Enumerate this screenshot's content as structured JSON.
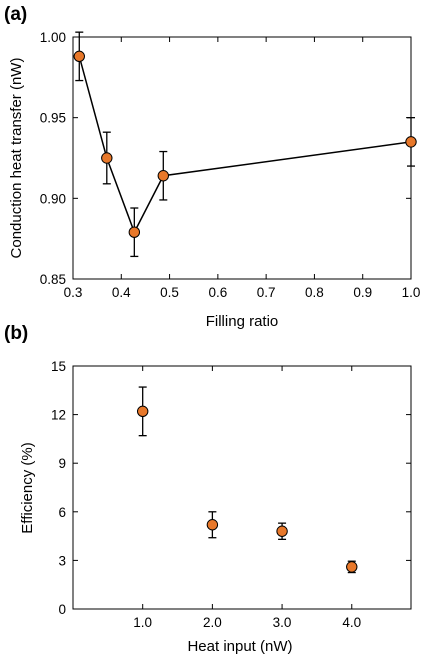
{
  "chart_data": [
    {
      "panel_label": "(a)",
      "type": "line",
      "xlabel": "Filling ratio",
      "ylabel": "Conduction heat transfer (nW)",
      "xlim": [
        0.3,
        1.0
      ],
      "ylim": [
        0.85,
        1.0
      ],
      "x_ticks": [
        "0.3",
        "0.4",
        "0.5",
        "0.6",
        "0.7",
        "0.8",
        "0.9",
        "1.0"
      ],
      "y_ticks": [
        "0.85",
        "0.90",
        "0.95",
        "1.00"
      ],
      "grid": false,
      "series": [
        {
          "x": [
            0.313,
            0.37,
            0.427,
            0.487,
            1.0
          ],
          "y": [
            0.988,
            0.925,
            0.879,
            0.914,
            0.935
          ],
          "error": [
            0.015,
            0.016,
            0.015,
            0.015,
            0.015
          ],
          "marker_color": "#e8782a",
          "line_color": "#000000"
        }
      ]
    },
    {
      "panel_label": "(b)",
      "type": "scatter",
      "xlabel": "Heat input (nW)",
      "ylabel": "Efficiency (%)",
      "xlim": [
        0.0,
        4.85
      ],
      "ylim": [
        0,
        15
      ],
      "x_ticks": [
        "1.0",
        "2.0",
        "3.0",
        "4.0"
      ],
      "y_ticks": [
        "0",
        "3",
        "6",
        "9",
        "12",
        "15"
      ],
      "grid": false,
      "series": [
        {
          "x": [
            1.0,
            2.0,
            3.0,
            4.0
          ],
          "y": [
            12.2,
            5.2,
            4.8,
            2.6
          ],
          "error": [
            1.5,
            0.8,
            0.5,
            0.35
          ],
          "marker_color": "#e8782a"
        }
      ]
    }
  ]
}
